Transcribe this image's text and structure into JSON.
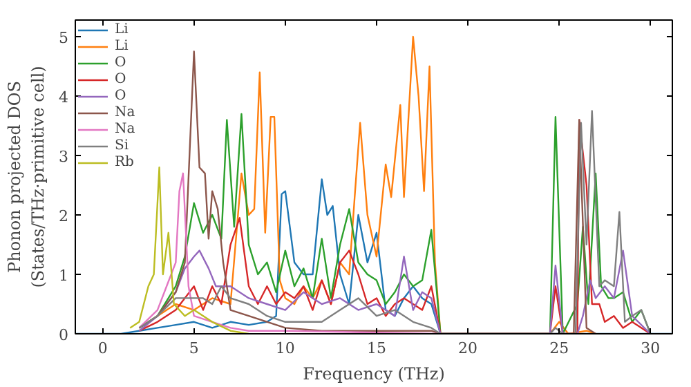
{
  "chart_data": {
    "type": "line",
    "xlabel": "Frequency (THz)",
    "ylabel": "Phonon projected DOS\n(States/THz·primitive cell)",
    "xlim": [
      -1.5,
      31.2
    ],
    "ylim": [
      0,
      5.28
    ],
    "xticks": [
      0,
      5,
      10,
      15,
      20,
      25,
      30
    ],
    "yticks": [
      0,
      1,
      2,
      3,
      4,
      5
    ],
    "grid": false,
    "legend": "top left",
    "marker": "none",
    "line_style": "solid",
    "series": [
      {
        "name": "Li",
        "color": "#1f77b4",
        "x": [
          -1.5,
          1,
          2,
          3,
          4,
          5,
          6,
          7,
          8,
          9,
          9.5,
          9.8,
          10,
          10.5,
          11,
          11.5,
          12,
          12.3,
          12.6,
          13,
          13.5,
          14,
          14.5,
          15,
          15.5,
          16,
          16.5,
          17,
          17.5,
          18,
          18.5,
          31.2
        ],
        "values": [
          0,
          0,
          0.05,
          0.1,
          0.15,
          0.2,
          0.1,
          0.2,
          0.15,
          0.2,
          0.3,
          2.35,
          2.4,
          1.2,
          1.0,
          1.0,
          2.6,
          2.0,
          2.15,
          1.0,
          0.5,
          2.0,
          1.2,
          1.7,
          0.4,
          0.3,
          0.6,
          0.8,
          0.6,
          0.5,
          0,
          0
        ]
      },
      {
        "name": "Li",
        "color": "#ff7f0e",
        "x": [
          2,
          3,
          4,
          5,
          6,
          7,
          7.6,
          8,
          8.3,
          8.6,
          8.9,
          9.2,
          9.4,
          9.7,
          10,
          10.5,
          11,
          11.5,
          12,
          12.5,
          13,
          13.5,
          13.8,
          14.1,
          14.5,
          15,
          15.5,
          15.8,
          16.3,
          16.5,
          17,
          17.3,
          17.6,
          17.9,
          18.2,
          18.5,
          24.5,
          25,
          25.5,
          26.5,
          27
        ],
        "values": [
          0.1,
          0.3,
          0.5,
          0.4,
          0.6,
          0.5,
          2.7,
          2.0,
          2.1,
          4.4,
          1.7,
          3.65,
          3.65,
          0.9,
          0.6,
          0.5,
          0.8,
          0.6,
          0.9,
          0.5,
          1.2,
          1.0,
          2.3,
          3.55,
          2.0,
          1.3,
          2.85,
          2.3,
          3.85,
          2.3,
          5.0,
          4.0,
          2.4,
          4.5,
          1.2,
          0,
          0,
          0.2,
          0,
          0.05,
          0
        ]
      },
      {
        "name": "O",
        "color": "#2ca02c",
        "x": [
          2,
          3,
          4,
          4.5,
          5,
          5.5,
          6,
          6.5,
          6.8,
          7.2,
          7.6,
          8,
          8.5,
          9,
          9.5,
          10,
          10.5,
          11,
          11.5,
          12,
          12.5,
          13,
          13.5,
          14,
          14.5,
          15,
          15.5,
          16,
          16.5,
          17,
          17.5,
          18,
          18.5,
          24.5,
          24.8,
          25.2,
          26,
          26.3,
          26.6,
          27,
          27.3,
          27.7,
          28,
          28.5,
          29,
          29.5,
          30
        ],
        "values": [
          0.1,
          0.3,
          0.8,
          1.3,
          2.2,
          1.7,
          2.0,
          1.6,
          3.6,
          1.8,
          3.7,
          1.5,
          1.0,
          1.2,
          0.7,
          1.4,
          0.8,
          1.1,
          0.6,
          1.6,
          0.6,
          1.5,
          2.1,
          1.2,
          1.0,
          0.9,
          0.5,
          0.7,
          1.0,
          0.8,
          0.9,
          1.75,
          0,
          0,
          3.65,
          0,
          0.5,
          1.8,
          0.5,
          2.7,
          0.8,
          0.6,
          0.6,
          0.7,
          0.2,
          0.4,
          0
        ]
      },
      {
        "name": "O",
        "color": "#d62728",
        "x": [
          2,
          3,
          4,
          5,
          5.5,
          6,
          6.5,
          7,
          7.5,
          8,
          8.5,
          9,
          9.5,
          10,
          10.5,
          11,
          11.5,
          12,
          12.5,
          13,
          13.5,
          14,
          14.5,
          15,
          15.5,
          16,
          16.5,
          17,
          17.5,
          18,
          18.5,
          24.5,
          24.8,
          25.2,
          26,
          26.1,
          26.5,
          26.8,
          27.2,
          27.5,
          28,
          28.5,
          29,
          30
        ],
        "values": [
          0.05,
          0.2,
          0.4,
          0.8,
          0.4,
          0.8,
          0.5,
          1.5,
          1.95,
          0.8,
          0.5,
          0.8,
          0.5,
          0.7,
          0.6,
          0.8,
          0.4,
          0.9,
          0.5,
          1.2,
          1.4,
          1.0,
          0.5,
          0.6,
          0.3,
          0.5,
          0.6,
          0.5,
          0.4,
          0.8,
          0,
          0,
          0.8,
          0,
          0,
          3.6,
          2.5,
          0.5,
          0.5,
          0.2,
          0.3,
          0.1,
          0.2,
          0
        ]
      },
      {
        "name": "O",
        "color": "#9467bd",
        "x": [
          2,
          3,
          4,
          4.5,
          5,
          5.3,
          5.8,
          6.2,
          7,
          8,
          9,
          10,
          11,
          12,
          13,
          14,
          15,
          16,
          16.5,
          17,
          17.5,
          18,
          18.5,
          24.5,
          24.8,
          25.2,
          26,
          26.3,
          26.7,
          27,
          27.5,
          28,
          28.5,
          29,
          30
        ],
        "values": [
          0.05,
          0.3,
          0.7,
          1.1,
          1.3,
          1.4,
          1.1,
          0.8,
          0.8,
          0.6,
          0.5,
          0.4,
          0.7,
          0.5,
          0.6,
          0.4,
          0.5,
          0.3,
          1.3,
          0.4,
          0.7,
          0.6,
          0,
          0,
          1.15,
          0,
          0,
          0.3,
          0.9,
          0.6,
          0.8,
          0.6,
          1.4,
          0.3,
          0
        ]
      },
      {
        "name": "Na",
        "color": "#8c564b",
        "x": [
          2,
          3,
          4,
          4.5,
          5,
          5.3,
          5.6,
          5.8,
          6,
          6.3,
          6.6,
          7,
          8,
          10,
          12,
          18,
          18.5,
          25.8,
          26.1,
          26.5,
          27
        ],
        "values": [
          0.1,
          0.3,
          0.7,
          1.2,
          4.75,
          2.8,
          2.7,
          1.6,
          2.4,
          2.1,
          1.2,
          0.4,
          0.3,
          0.1,
          0.05,
          0.05,
          0,
          0,
          3.6,
          0.1,
          0
        ]
      },
      {
        "name": "Na",
        "color": "#e377c2",
        "x": [
          2,
          3,
          3.5,
          4,
          4.2,
          4.4,
          4.7,
          5,
          6,
          7,
          8,
          10,
          18.5
        ],
        "values": [
          0.1,
          0.4,
          0.8,
          1.2,
          2.4,
          2.7,
          0.8,
          0.3,
          0.2,
          0.1,
          0.05,
          0.05,
          0
        ]
      },
      {
        "name": "Si",
        "color": "#7f7f7f",
        "x": [
          2,
          3,
          4,
          5,
          5.5,
          6,
          6.5,
          7,
          8,
          9,
          10,
          11,
          12,
          13,
          14,
          15,
          16,
          17,
          18,
          18.5,
          24.5,
          24.8,
          25.2,
          25.9,
          26.2,
          26.5,
          26.8,
          27.2,
          27.5,
          28,
          28.3,
          28.6,
          29,
          29.5,
          30
        ],
        "values": [
          0.1,
          0.3,
          0.6,
          0.6,
          0.6,
          0.5,
          0.8,
          0.6,
          0.5,
          0.3,
          0.2,
          0.2,
          0.2,
          0.4,
          0.6,
          0.3,
          0.4,
          0.2,
          0.1,
          0,
          0,
          0.1,
          0,
          0,
          3.55,
          1.5,
          3.75,
          0.8,
          0.9,
          0.8,
          2.05,
          0.2,
          0.3,
          0.4,
          0
        ]
      },
      {
        "name": "Rb",
        "color": "#bcbd22",
        "x": [
          1.5,
          2,
          2.5,
          2.8,
          3.1,
          3.3,
          3.6,
          3.9,
          4.5,
          5,
          6,
          7,
          8
        ],
        "values": [
          0.1,
          0.2,
          0.8,
          1.0,
          2.8,
          1.0,
          1.7,
          0.5,
          0.3,
          0.4,
          0.2,
          0.05,
          0
        ]
      }
    ]
  }
}
